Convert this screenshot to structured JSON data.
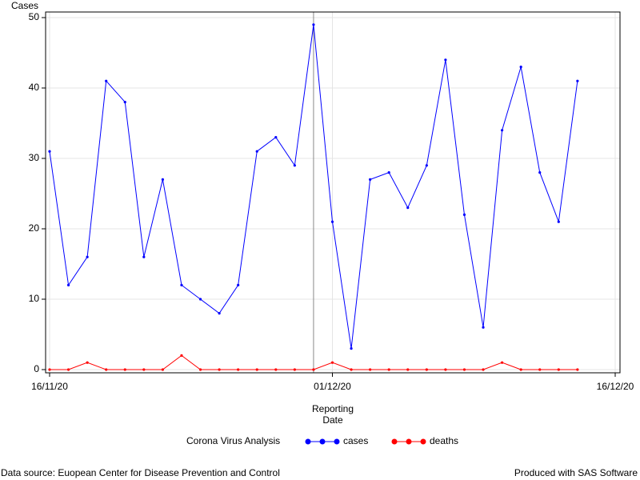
{
  "chart_data": {
    "type": "line",
    "y_label": "Cases",
    "x_label": [
      "Reporting",
      "Date"
    ],
    "legend_title": "Corona Virus Analysis",
    "footnote_left": "Data source: Euopean Center for Disease Prevention and Control",
    "footnote_right": "Produced with SAS Software",
    "x": [
      "16/11/20",
      "17/11/20",
      "18/11/20",
      "19/11/20",
      "20/11/20",
      "21/11/20",
      "22/11/20",
      "23/11/20",
      "24/11/20",
      "25/11/20",
      "26/11/20",
      "27/11/20",
      "28/11/20",
      "29/11/20",
      "30/11/20",
      "01/12/20",
      "02/12/20",
      "03/12/20",
      "04/12/20",
      "05/12/20",
      "06/12/20",
      "07/12/20",
      "08/12/20",
      "09/12/20",
      "10/12/20",
      "11/12/20",
      "12/12/20",
      "13/12/20",
      "14/12/20"
    ],
    "series": [
      {
        "name": "cases",
        "color": "#0000ff",
        "values": [
          31,
          12,
          16,
          41,
          38,
          16,
          27,
          12,
          10,
          8,
          12,
          31,
          33,
          29,
          49,
          21,
          3,
          27,
          28,
          23,
          29,
          44,
          22,
          6,
          34,
          43,
          28,
          21,
          41
        ]
      },
      {
        "name": "deaths",
        "color": "#ff0000",
        "values": [
          0,
          0,
          1,
          0,
          0,
          0,
          0,
          2,
          0,
          0,
          0,
          0,
          0,
          0,
          0,
          1,
          0,
          0,
          0,
          0,
          0,
          0,
          0,
          0,
          1,
          0,
          0,
          0,
          0
        ]
      }
    ],
    "xlim": [
      "16/11/20",
      "16/12/20"
    ],
    "xticks": [
      "16/11/20",
      "01/12/20",
      "16/12/20"
    ],
    "ylim": [
      0,
      50
    ],
    "yticks": [
      0,
      10,
      20,
      30,
      40,
      50
    ],
    "grid": true,
    "reference_line": "30/11/20"
  }
}
